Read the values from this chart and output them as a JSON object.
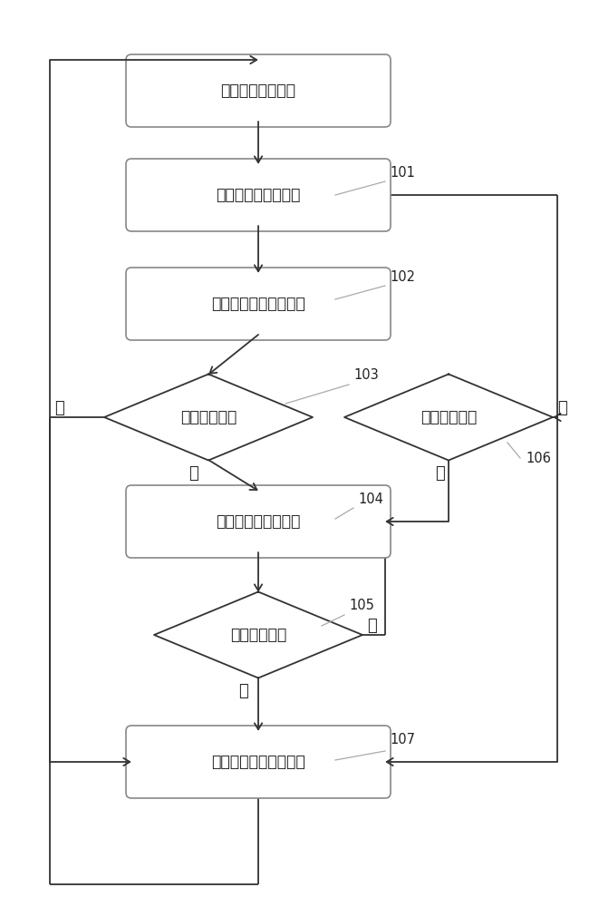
{
  "bg_color": "#ffffff",
  "box_edge": "#888888",
  "line_color": "#333333",
  "text_color": "#222222",
  "font_size": 12.5,
  "nodes": {
    "sleep": {
      "label": "电池管理系统休眠",
      "type": "rect"
    },
    "wake": {
      "label": "电池管理系统自唤醒",
      "type": "rect"
    },
    "calc": {
      "label": "低压蓄电池荷电量计算",
      "type": "rect"
    },
    "full": {
      "label": "充电满足判断",
      "type": "diamond"
    },
    "abnormal": {
      "label": "异常终止判断",
      "type": "diamond"
    },
    "charge": {
      "label": "执行低压蓄电池充电",
      "type": "rect"
    },
    "stop": {
      "label": "充电停止判断",
      "type": "diamond"
    },
    "resleep": {
      "label": "电池管理系统重新休眠",
      "type": "rect"
    }
  }
}
